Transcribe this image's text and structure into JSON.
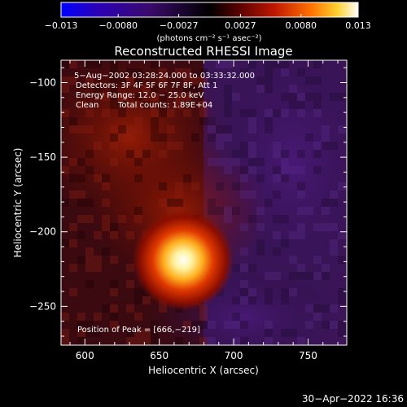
{
  "colorbar": {
    "tick_labels": [
      "−0.013",
      "−0.0080",
      "−0.0027",
      "0.0027",
      "0.0080",
      "0.013"
    ],
    "tick_values": [
      -0.013,
      -0.008,
      -0.0027,
      0.0027,
      0.008,
      0.013
    ],
    "range": [
      -0.013,
      0.013
    ],
    "unit_label": "(photons cm⁻² s⁻¹ asec⁻²)",
    "colors": [
      "#0000ff",
      "#2a00b8",
      "#3a0a6a",
      "#000000",
      "#5a0000",
      "#c01800",
      "#ff7000",
      "#ffd030",
      "#ffffff"
    ]
  },
  "chart_data": {
    "type": "heatmap",
    "title": "Reconstructed RHESSI Image",
    "xlabel": "Heliocentric X (arcsec)",
    "ylabel": "Heliocentric Y (arcsec)",
    "xlim": [
      584,
      776
    ],
    "ylim": [
      -276,
      -85
    ],
    "x_ticks": [
      600,
      650,
      700,
      750
    ],
    "y_ticks": [
      -100,
      -150,
      -200,
      -250
    ],
    "x_tick_labels": [
      "600",
      "650",
      "700",
      "750"
    ],
    "y_tick_labels": [
      "−100",
      "−150",
      "−200",
      "−250"
    ],
    "annotations": {
      "time": "5−Aug−2002 03:28:24.000 to 03:33:32.000",
      "detectors": "Detectors: 3F 4F 5F 6F 7F 8F, Att 1",
      "energy": "Energy Range: 12.0 − 25.0 keV",
      "method": "Clean",
      "counts": "Total counts: 1.89E+04",
      "peak": "Position of Peak = [666,−219]"
    },
    "peak": {
      "x": 666,
      "y": -219,
      "value": 0.013
    },
    "background_regions": [
      {
        "name": "red diffuse emission (left / center)",
        "x": 630,
        "y": -150,
        "value": 0.0035
      },
      {
        "name": "purple negative region (right)",
        "x": 740,
        "y": -160,
        "value": -0.0035
      },
      {
        "name": "dark lower-left",
        "x": 600,
        "y": -250,
        "value": -0.0015
      }
    ]
  },
  "footer": {
    "timestamp": "30−Apr−2022 16:36"
  }
}
